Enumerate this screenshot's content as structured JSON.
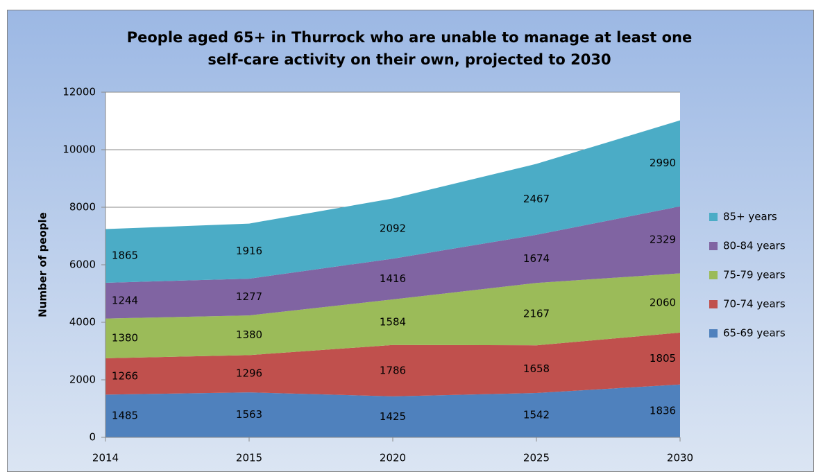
{
  "chart_data": {
    "type": "stacked_area",
    "title": "People aged 65+ in Thurrock who are unable to manage at least one self-care activity on their own, projected to 2030",
    "y_label": "Number of people",
    "categories": [
      "2014",
      "2015",
      "2020",
      "2025",
      "2030"
    ],
    "series": [
      {
        "name": "65-69 years",
        "color": "#4f81bd",
        "values": [
          1485,
          1563,
          1425,
          1542,
          1836
        ]
      },
      {
        "name": "70-74 years",
        "color": "#c0504d",
        "values": [
          1266,
          1296,
          1786,
          1658,
          1805
        ]
      },
      {
        "name": "75-79 years",
        "color": "#9bbb59",
        "values": [
          1380,
          1380,
          1584,
          2167,
          2060
        ]
      },
      {
        "name": "80-84 years",
        "color": "#8064a2",
        "values": [
          1244,
          1277,
          1416,
          1674,
          2329
        ]
      },
      {
        "name": "85+ years",
        "color": "#4bacc6",
        "values": [
          1865,
          1916,
          2092,
          2467,
          2990
        ]
      }
    ],
    "ylim": [
      0,
      12000
    ],
    "yticks": [
      0,
      2000,
      4000,
      6000,
      8000,
      10000,
      12000
    ],
    "grid": true,
    "legend": "right"
  }
}
